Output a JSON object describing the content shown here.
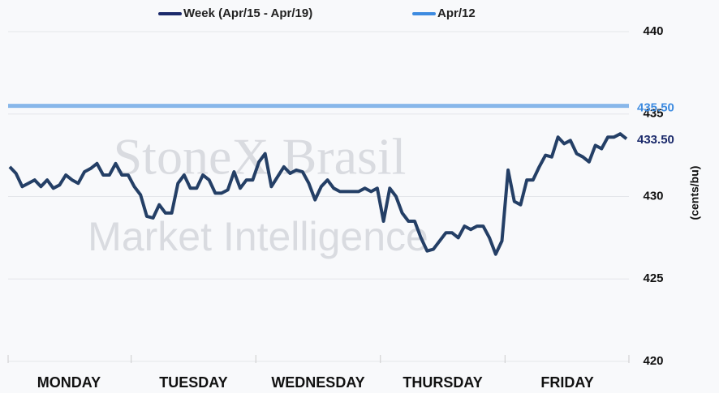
{
  "chart_data": {
    "type": "line",
    "watermark": [
      "StoneX Brasil",
      "Market Intelligence"
    ],
    "y_axis_label": "(cents/bu)",
    "categories": [
      null,
      null,
      null,
      null,
      null,
      null,
      null,
      null,
      null,
      null,
      "MONDAY",
      null,
      null,
      null,
      null,
      null,
      null,
      null,
      null,
      null,
      null,
      null,
      null,
      null,
      null,
      null,
      null,
      null,
      null,
      null,
      "TUESDAY",
      null,
      null,
      null,
      null,
      null,
      null,
      null,
      null,
      null,
      null,
      null,
      null,
      null,
      null,
      null,
      null,
      null,
      null,
      null,
      "WEDNESDAY",
      null,
      null,
      null,
      null,
      null,
      null,
      null,
      null,
      null,
      null,
      null,
      null,
      null,
      null,
      null,
      null,
      null,
      null,
      null,
      "THURSDAY",
      null,
      null,
      null,
      null,
      null,
      null,
      null,
      null,
      null,
      null,
      null,
      null,
      null,
      null,
      null,
      null,
      null,
      null,
      null,
      "FRIDAY",
      null,
      null,
      null,
      null,
      null,
      null,
      null,
      null,
      null
    ],
    "series": [
      {
        "name": "Week (Apr/15 - Apr/19)",
        "color": "#243f66",
        "values": [
          431.8,
          431.4,
          430.6,
          430.8,
          431.0,
          430.6,
          431.0,
          430.5,
          430.7,
          431.3,
          431.0,
          430.8,
          431.5,
          431.7,
          432.0,
          431.3,
          431.3,
          432.0,
          431.3,
          431.3,
          430.6,
          430.1,
          428.8,
          428.7,
          429.5,
          429.0,
          429.0,
          430.8,
          431.3,
          430.5,
          430.5,
          431.3,
          431.0,
          430.2,
          430.2,
          430.4,
          431.5,
          430.5,
          431.0,
          431.0,
          432.1,
          432.6,
          430.6,
          431.2,
          431.8,
          431.4,
          431.6,
          431.5,
          430.8,
          429.8,
          430.6,
          431.0,
          430.5,
          430.3,
          430.3,
          430.3,
          430.3,
          430.5,
          430.3,
          430.5,
          428.5,
          430.5,
          430.0,
          429.0,
          428.5,
          428.5,
          427.5,
          426.7,
          426.8,
          427.3,
          427.8,
          427.8,
          427.5,
          428.2,
          428.0,
          428.2,
          428.2,
          427.5,
          426.5,
          427.3,
          431.6,
          429.7,
          429.5,
          431.0,
          431.0,
          431.8,
          432.5,
          432.4,
          433.6,
          433.2,
          433.4,
          432.6,
          432.4,
          432.1,
          433.1,
          432.9,
          433.6,
          433.6,
          433.8,
          433.5
        ],
        "last_value_label": "433.50"
      }
    ],
    "reference_line": {
      "name": "Apr/12",
      "color": "#3d8be0",
      "value": 435.5,
      "value_label": "435.50"
    },
    "ylim": [
      420,
      440
    ],
    "yticks": [
      420,
      425,
      430,
      435,
      440
    ],
    "grid": true
  }
}
